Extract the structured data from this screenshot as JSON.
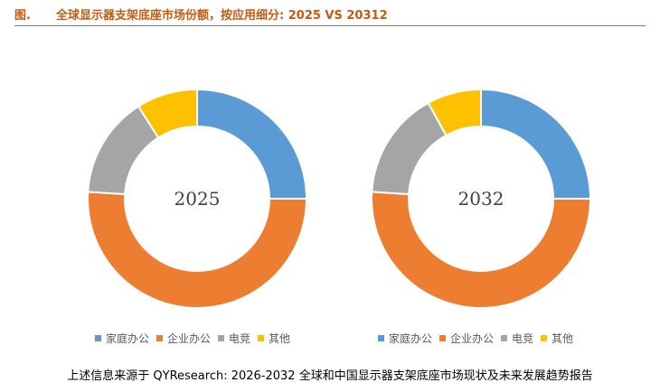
{
  "figure": {
    "label": "图.",
    "title": "全球显示器支架底座市场份额，按应用细分: 2025 VS 20312"
  },
  "colors": {
    "accent": "#c55a11",
    "series": [
      "#5b9bd5",
      "#ed7d31",
      "#a5a5a5",
      "#ffc000"
    ]
  },
  "chart_data": [
    {
      "type": "donut",
      "center_label": "2025",
      "categories": [
        "家庭办公",
        "企业办公",
        "电竞",
        "其他"
      ],
      "values": [
        25,
        51,
        15,
        9
      ],
      "unit": "%",
      "legend_position": "bottom"
    },
    {
      "type": "donut",
      "center_label": "2032",
      "categories": [
        "家庭办公",
        "企业办公",
        "电竞",
        "其他"
      ],
      "values": [
        25,
        51,
        16,
        8
      ],
      "unit": "%",
      "legend_position": "bottom"
    }
  ],
  "source": "上述信息来源于 QYResearch: 2026-2032 全球和中国显示器支架底座市场现状及未来发展趋势报告"
}
